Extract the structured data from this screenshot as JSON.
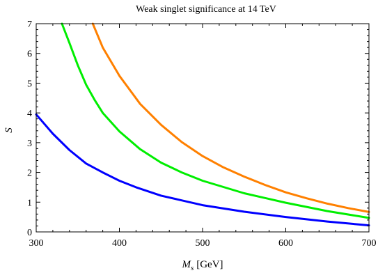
{
  "chart_data": {
    "type": "line",
    "title": "Weak singlet significance at 14 TeV",
    "xlabel": {
      "symbol": "M",
      "subscript": "s",
      "unit": "[GeV]"
    },
    "ylabel": "S",
    "xlim": [
      300,
      700
    ],
    "ylim": [
      0,
      7
    ],
    "x_ticks": [
      300,
      400,
      500,
      600,
      700
    ],
    "y_ticks": [
      0,
      1,
      2,
      3,
      4,
      5,
      6,
      7
    ],
    "grid": false,
    "series": [
      {
        "color": "#0000ff",
        "points": [
          [
            300,
            3.95
          ],
          [
            320,
            3.3
          ],
          [
            340,
            2.75
          ],
          [
            360,
            2.3
          ],
          [
            370,
            2.15
          ],
          [
            380,
            2.0
          ],
          [
            400,
            1.72
          ],
          [
            420,
            1.5
          ],
          [
            450,
            1.22
          ],
          [
            500,
            0.9
          ],
          [
            550,
            0.68
          ],
          [
            600,
            0.5
          ],
          [
            650,
            0.35
          ],
          [
            700,
            0.22
          ]
        ]
      },
      {
        "color": "#00ee00",
        "points": [
          [
            331,
            7.0
          ],
          [
            340,
            6.35
          ],
          [
            350,
            5.6
          ],
          [
            360,
            4.95
          ],
          [
            370,
            4.45
          ],
          [
            380,
            4.0
          ],
          [
            400,
            3.38
          ],
          [
            425,
            2.78
          ],
          [
            450,
            2.33
          ],
          [
            475,
            2.0
          ],
          [
            500,
            1.72
          ],
          [
            550,
            1.3
          ],
          [
            600,
            0.98
          ],
          [
            650,
            0.7
          ],
          [
            700,
            0.47
          ]
        ]
      },
      {
        "color": "#ff8000",
        "points": [
          [
            368,
            7.0
          ],
          [
            380,
            6.2
          ],
          [
            400,
            5.25
          ],
          [
            425,
            4.3
          ],
          [
            450,
            3.6
          ],
          [
            475,
            3.02
          ],
          [
            500,
            2.55
          ],
          [
            525,
            2.17
          ],
          [
            550,
            1.86
          ],
          [
            575,
            1.58
          ],
          [
            600,
            1.33
          ],
          [
            625,
            1.13
          ],
          [
            650,
            0.95
          ],
          [
            675,
            0.8
          ],
          [
            700,
            0.67
          ]
        ]
      }
    ]
  }
}
